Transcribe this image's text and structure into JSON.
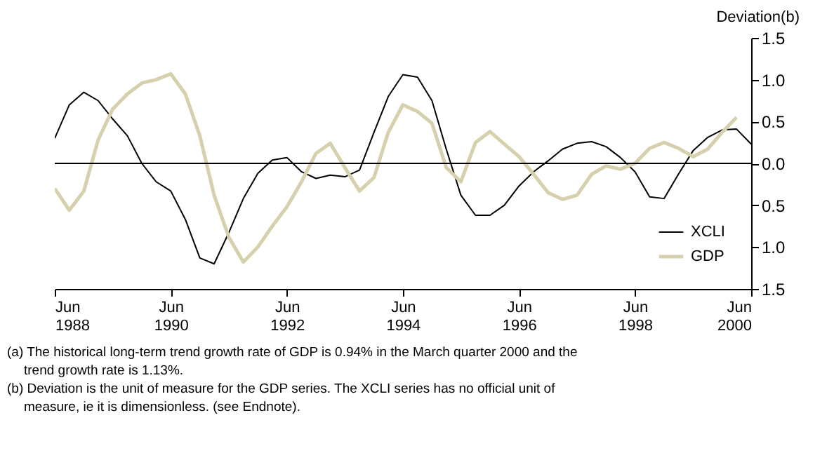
{
  "chart_data": {
    "type": "line",
    "ylabel": "Deviation(b)",
    "x": [
      "1988-06",
      "1988-09",
      "1988-12",
      "1989-03",
      "1989-06",
      "1989-09",
      "1989-12",
      "1990-03",
      "1990-06",
      "1990-09",
      "1990-12",
      "1991-03",
      "1991-06",
      "1991-09",
      "1991-12",
      "1992-03",
      "1992-06",
      "1992-09",
      "1992-12",
      "1993-03",
      "1993-06",
      "1993-09",
      "1993-12",
      "1994-03",
      "1994-06",
      "1994-09",
      "1994-12",
      "1995-03",
      "1995-06",
      "1995-09",
      "1995-12",
      "1996-03",
      "1996-06",
      "1996-09",
      "1996-12",
      "1997-03",
      "1997-06",
      "1997-09",
      "1997-12",
      "1998-03",
      "1998-06",
      "1998-09",
      "1998-12",
      "1999-03",
      "1999-06",
      "1999-09",
      "1999-12",
      "2000-03",
      "2000-06"
    ],
    "series": [
      {
        "name": "XCLI",
        "color": "#000000",
        "values": [
          0.3,
          0.7,
          0.85,
          0.75,
          0.53,
          0.33,
          0.0,
          -0.22,
          -0.33,
          -0.67,
          -1.13,
          -1.2,
          -0.83,
          -0.42,
          -0.12,
          0.04,
          0.07,
          -0.1,
          -0.18,
          -0.14,
          -0.16,
          -0.08,
          0.37,
          0.8,
          1.06,
          1.03,
          0.75,
          0.17,
          -0.38,
          -0.62,
          -0.62,
          -0.5,
          -0.27,
          -0.1,
          0.03,
          0.17,
          0.24,
          0.26,
          0.2,
          0.07,
          -0.1,
          -0.4,
          -0.42,
          -0.13,
          0.15,
          0.31,
          0.4,
          0.41,
          0.23
        ]
      },
      {
        "name": "GDP",
        "color": "#d6d0ad",
        "values": [
          -0.3,
          -0.56,
          -0.33,
          0.28,
          0.65,
          0.83,
          0.96,
          1.0,
          1.07,
          0.83,
          0.33,
          -0.38,
          -0.88,
          -1.18,
          -1.0,
          -0.75,
          -0.52,
          -0.22,
          0.12,
          0.24,
          -0.05,
          -0.33,
          -0.17,
          0.37,
          0.7,
          0.62,
          0.48,
          -0.05,
          -0.22,
          0.25,
          0.38,
          0.23,
          0.08,
          -0.13,
          -0.35,
          -0.43,
          -0.38,
          -0.13,
          -0.03,
          -0.07,
          0.0,
          0.18,
          0.25,
          0.18,
          0.08,
          0.17,
          0.37,
          0.55,
          null
        ]
      }
    ],
    "xlim": [
      "1988-06",
      "2000-06"
    ],
    "xticks": [
      {
        "value": "1988-06",
        "label": "Jun 1988"
      },
      {
        "value": "1990-06",
        "label": "Jun 1990"
      },
      {
        "value": "1992-06",
        "label": "Jun 1992"
      },
      {
        "value": "1994-06",
        "label": "Jun 1994"
      },
      {
        "value": "1996-06",
        "label": "Jun 1996"
      },
      {
        "value": "1998-06",
        "label": "Jun 1998"
      },
      {
        "value": "2000-06",
        "label": "Jun 2000"
      }
    ],
    "ylim": [
      -1.5,
      1.5
    ],
    "yticks": [
      {
        "value": -1.5,
        "label": "1.5"
      },
      {
        "value": -1.0,
        "label": "1.0"
      },
      {
        "value": -0.5,
        "label": "0.5"
      },
      {
        "value": 0,
        "label": "0.0"
      },
      {
        "value": 0.5,
        "label": "0.5"
      },
      {
        "value": 1.0,
        "label": "1.0"
      },
      {
        "value": 1.5,
        "label": "1.5"
      }
    ],
    "ref_lines": [
      {
        "axis": "y",
        "value": 0,
        "color": "#000000"
      }
    ],
    "legend": "bottom right",
    "grid": false,
    "annotations": [
      "(a) The historical long-term trend growth rate of GDP is 0.94% in the March quarter 2000 and the trend growth rate is 1.13%.",
      "(b) Deviation is the unit of measure for the GDP series. The XCLI series has no official unit of measure, ie it is dimensionless.  (see Endnote)."
    ]
  }
}
